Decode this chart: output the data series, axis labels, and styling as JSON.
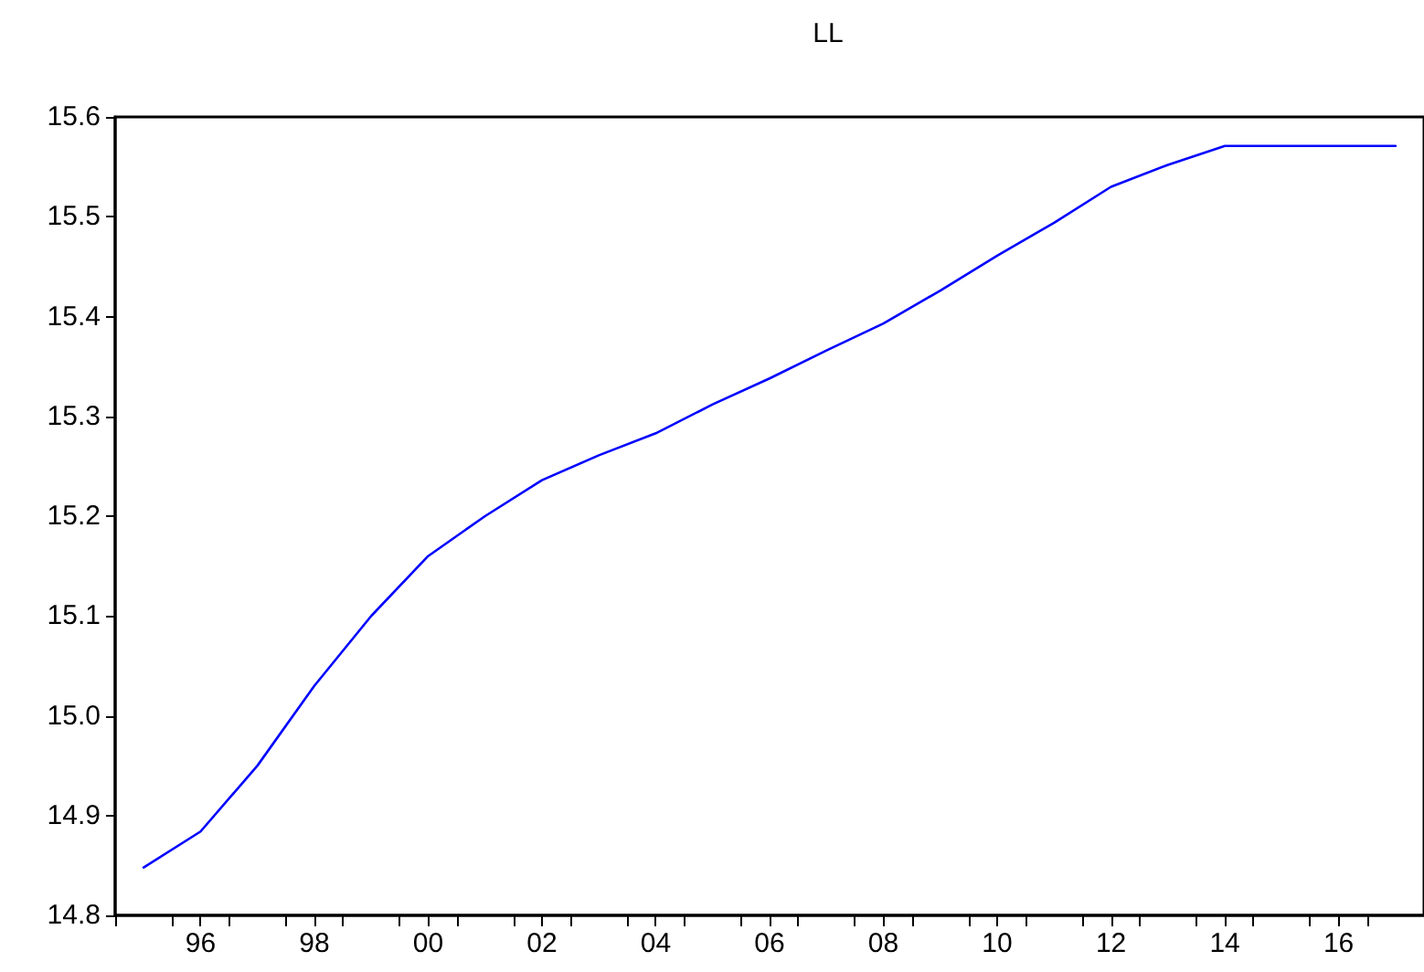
{
  "chart_data": {
    "type": "line",
    "title": "LL",
    "x": [
      1995,
      1996,
      1997,
      1998,
      1999,
      2000,
      2001,
      2002,
      2003,
      2004,
      2005,
      2006,
      2007,
      2008,
      2009,
      2010,
      2011,
      2012,
      2013,
      2014,
      2015,
      2016,
      2017
    ],
    "series": [
      {
        "color": "#0000ff",
        "values": [
          14.848,
          14.884,
          14.95,
          15.03,
          15.1,
          15.16,
          15.2,
          15.236,
          15.261,
          15.283,
          15.312,
          15.338,
          15.366,
          15.393,
          15.426,
          15.461,
          15.494,
          15.53,
          15.552,
          15.571,
          15.571,
          15.571,
          15.571
        ]
      }
    ],
    "xlim": [
      1994.5,
      2017.5
    ],
    "xticks": [
      {
        "value": 1994.5,
        "label": null
      },
      {
        "value": 1995.5,
        "label": null
      },
      {
        "value": 1996,
        "label": "96"
      },
      {
        "value": 1996.5,
        "label": null
      },
      {
        "value": 1997.5,
        "label": null
      },
      {
        "value": 1998,
        "label": "98"
      },
      {
        "value": 1998.5,
        "label": null
      },
      {
        "value": 1999.5,
        "label": null
      },
      {
        "value": 2000,
        "label": "00"
      },
      {
        "value": 2000.5,
        "label": null
      },
      {
        "value": 2001.5,
        "label": null
      },
      {
        "value": 2002,
        "label": "02"
      },
      {
        "value": 2002.5,
        "label": null
      },
      {
        "value": 2003.5,
        "label": null
      },
      {
        "value": 2004,
        "label": "04"
      },
      {
        "value": 2004.5,
        "label": null
      },
      {
        "value": 2005.5,
        "label": null
      },
      {
        "value": 2006,
        "label": "06"
      },
      {
        "value": 2006.5,
        "label": null
      },
      {
        "value": 2007.5,
        "label": null
      },
      {
        "value": 2008,
        "label": "08"
      },
      {
        "value": 2008.5,
        "label": null
      },
      {
        "value": 2009.5,
        "label": null
      },
      {
        "value": 2010,
        "label": "10"
      },
      {
        "value": 2010.5,
        "label": null
      },
      {
        "value": 2011.5,
        "label": null
      },
      {
        "value": 2012,
        "label": "12"
      },
      {
        "value": 2012.5,
        "label": null
      },
      {
        "value": 2013.5,
        "label": null
      },
      {
        "value": 2014,
        "label": "14"
      },
      {
        "value": 2014.5,
        "label": null
      },
      {
        "value": 2015.5,
        "label": null
      },
      {
        "value": 2016,
        "label": "16"
      },
      {
        "value": 2016.5,
        "label": null
      }
    ],
    "ylim": [
      14.8,
      15.6
    ],
    "yticks": [
      14.8,
      14.9,
      {
        "value": 15,
        "label": "15.0"
      },
      15.1,
      15.2,
      15.3,
      15.4,
      15.5,
      15.6
    ],
    "grid": false,
    "marker": "none",
    "line_style": "solid"
  }
}
